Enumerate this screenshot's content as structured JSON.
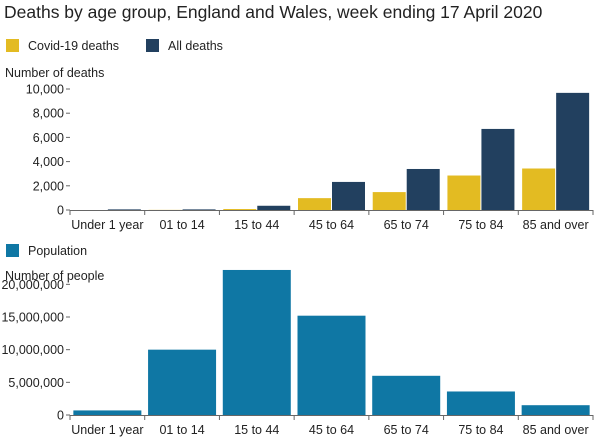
{
  "title": "Deaths by age group, England and Wales, week ending 17 April 2020",
  "chart_data": [
    {
      "type": "bar",
      "ylabel": "Number of deaths",
      "categories": [
        "Under 1 year",
        "01 to 14",
        "15 to 44",
        "45 to 64",
        "65 to 74",
        "75 to 84",
        "85 and over"
      ],
      "ylim": [
        0,
        10000
      ],
      "yticks": [
        0,
        2000,
        4000,
        6000,
        8000,
        10000
      ],
      "ytick_labels": [
        "0",
        "2,000",
        "4,000",
        "6,000",
        "8,000",
        "10,000"
      ],
      "grid": false,
      "legend_position": "top-left",
      "series": [
        {
          "name": "Covid-19 deaths",
          "color": "#e3bb22",
          "values": [
            0,
            10,
            80,
            980,
            1480,
            2850,
            3430
          ]
        },
        {
          "name": "All deaths",
          "color": "#22405f",
          "values": [
            50,
            50,
            350,
            2320,
            3390,
            6700,
            9680
          ]
        }
      ]
    },
    {
      "type": "bar",
      "ylabel": "Number of people",
      "categories": [
        "Under 1 year",
        "01 to 14",
        "15 to 44",
        "45 to 64",
        "65 to 74",
        "75 to 84",
        "85 and over"
      ],
      "ylim": [
        0,
        22500000
      ],
      "yticks": [
        0,
        5000000,
        10000000,
        15000000,
        20000000
      ],
      "ytick_labels": [
        "0",
        "5,000,000",
        "10,000,000",
        "15,000,000",
        "20,000,000"
      ],
      "grid": false,
      "legend_position": "top-left",
      "series": [
        {
          "name": "Population",
          "color": "#0f77a4",
          "values": [
            700000,
            10000000,
            22200000,
            15200000,
            6000000,
            3600000,
            1500000
          ]
        }
      ]
    }
  ]
}
